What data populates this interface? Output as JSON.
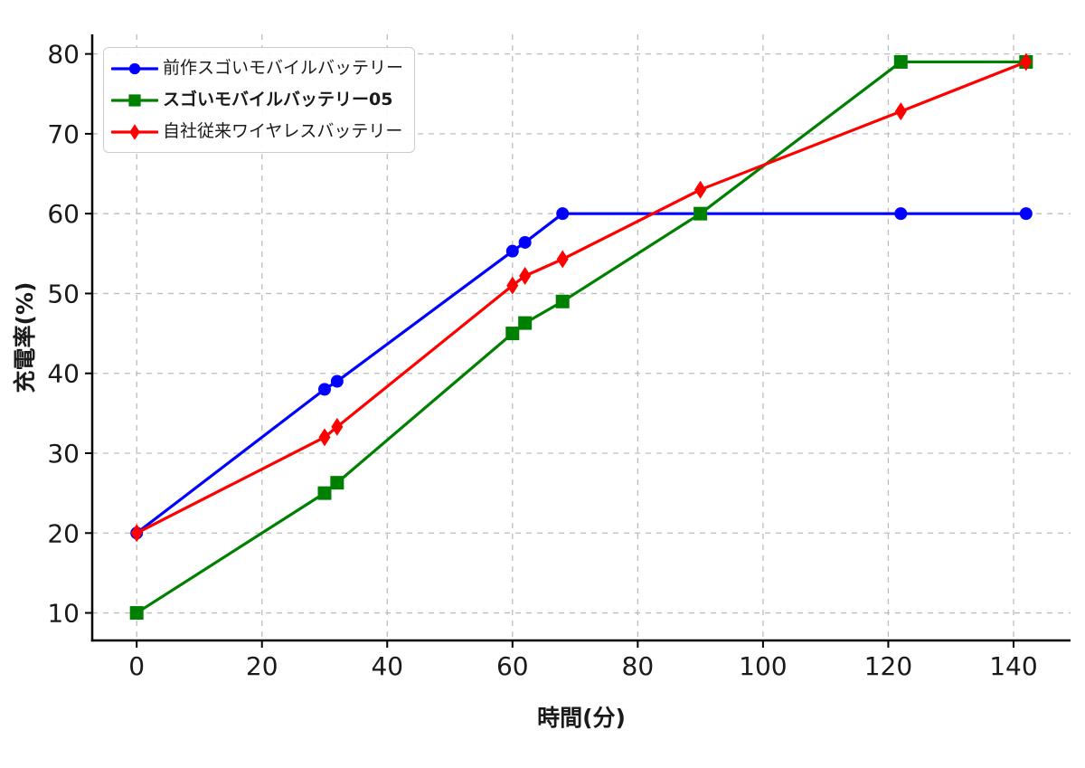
{
  "figure": {
    "background": "#ffffff"
  },
  "chart_data": {
    "type": "line",
    "title": "",
    "xlabel": "時間(分)",
    "ylabel": "充電率(%)",
    "x": [
      0,
      30,
      32,
      60,
      62,
      68,
      90,
      122,
      142
    ],
    "series": [
      {
        "name": "前作スゴいモバイルバッテリー",
        "color": "#0000ff",
        "marker": "circle",
        "bold": false,
        "values": [
          20,
          38,
          39,
          55.3,
          56.4,
          60,
          60,
          60,
          60
        ]
      },
      {
        "name": "スゴいモバイルバッテリー05",
        "color": "#008000",
        "marker": "square",
        "bold": true,
        "values": [
          10,
          25,
          26.3,
          45,
          46.3,
          49,
          60,
          79,
          79
        ]
      },
      {
        "name": "自社従来ワイヤレスバッテリー",
        "color": "#ff0000",
        "marker": "thin-diamond",
        "bold": false,
        "values": [
          20,
          32,
          33.3,
          51,
          52.2,
          54.3,
          63,
          72.8,
          79
        ]
      }
    ],
    "xticks": [
      0,
      20,
      40,
      60,
      80,
      100,
      120,
      140
    ],
    "yticks": [
      10,
      20,
      30,
      40,
      50,
      60,
      70,
      80
    ],
    "xlim": [
      -7.1,
      149.1
    ],
    "ylim": [
      6.55,
      82.45
    ],
    "grid": {
      "show": true,
      "style": "dashed",
      "color": "#bdbdbd"
    },
    "legend": {
      "position": "upper-left"
    },
    "axis_color": "#000000",
    "tick_label_color": "#1a1a1a"
  }
}
